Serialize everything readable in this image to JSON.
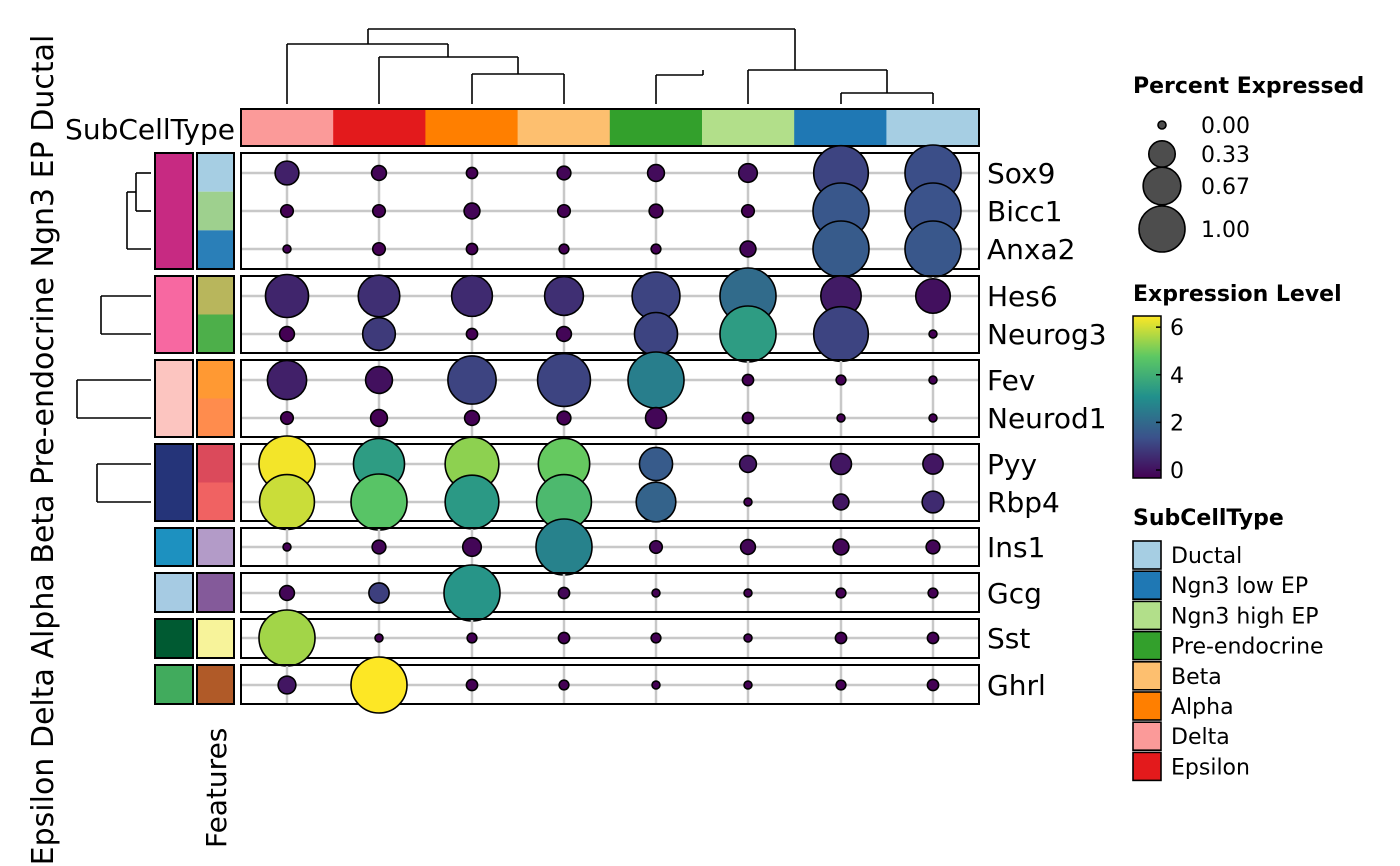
{
  "chart_data": {
    "type": "dotplot",
    "columns": [
      "Delta",
      "Epsilon",
      "Alpha",
      "Beta",
      "Pre-endocrine",
      "Ngn3 high EP",
      "Ngn3 low EP",
      "Ductal"
    ],
    "column_colors": [
      "#FB9A99",
      "#E31A1C",
      "#FF7F00",
      "#FDBF6F",
      "#33A02C",
      "#B2DF8A",
      "#1F78B4",
      "#A6CEE3"
    ],
    "column_annotation_label": "SubCellType",
    "features_label": "Features",
    "groups": [
      {
        "name": "Ductal",
        "color": "#C72A82",
        "features": [
          "Sox9",
          "Bicc1",
          "Anxa2"
        ],
        "feature_colors": [
          "#A6CEE3",
          "#9ED08E",
          "#2A7FB8"
        ]
      },
      {
        "name": "Ngn3 EP",
        "color": "#F768A1",
        "features": [
          "Hes6",
          "Neurog3"
        ],
        "feature_colors": [
          "#B8B65C",
          "#4DAF4A"
        ]
      },
      {
        "name": "Pre-endocrine",
        "color": "#FCC5C0",
        "features": [
          "Fev",
          "Neurod1"
        ],
        "feature_colors": [
          "#FF9933",
          "#FF8C4D"
        ]
      },
      {
        "name": "Beta",
        "color": "#253479",
        "features": [
          "Pyy",
          "Rbp4"
        ],
        "feature_colors": [
          "#DB4A5B",
          "#F06262"
        ]
      },
      {
        "name": "Alpha",
        "color": "#1D91C0",
        "features": [
          "Ins1"
        ],
        "feature_colors": [
          "#B39BC8"
        ]
      },
      {
        "name": "Delta",
        "color": "#A6CBE3",
        "features": [
          "Gcg"
        ],
        "feature_colors": [
          "#845A9A"
        ]
      },
      {
        "name": "Epsilon",
        "color": "#005A32",
        "features": [
          "Sst"
        ],
        "feature_colors": [
          "#F7F39A"
        ]
      },
      {
        "name": "",
        "color": "#41AB5D",
        "features": [
          "Ghrl"
        ],
        "feature_colors": [
          "#B05A28"
        ]
      }
    ],
    "group_side_label": "Epsilon Delta Alpha Beta Pre-endocrine Ngn3 EP Ductal",
    "percent": {
      "Sox9": [
        0.18,
        0.07,
        0.04,
        0.06,
        0.09,
        0.11,
        0.95,
        1.0
      ],
      "Bicc1": [
        0.05,
        0.05,
        0.08,
        0.05,
        0.06,
        0.05,
        1.0,
        1.0
      ],
      "Anxa2": [
        0.02,
        0.05,
        0.04,
        0.03,
        0.03,
        0.08,
        1.0,
        1.0
      ],
      "Hes6": [
        0.59,
        0.55,
        0.53,
        0.48,
        0.73,
        1.0,
        0.52,
        0.38
      ],
      "Neurog3": [
        0.07,
        0.34,
        0.04,
        0.07,
        0.59,
        1.0,
        0.95,
        0.02
      ],
      "Fev": [
        0.49,
        0.23,
        0.74,
        0.89,
        1.0,
        0.04,
        0.03,
        0.02
      ],
      "Neurod1": [
        0.05,
        0.09,
        0.07,
        0.06,
        0.14,
        0.04,
        0.02,
        0.02
      ],
      "Pyy": [
        1.0,
        0.83,
        0.92,
        0.84,
        0.35,
        0.09,
        0.14,
        0.13
      ],
      "Rbp4": [
        0.96,
        1.0,
        0.92,
        0.96,
        0.5,
        0.02,
        0.08,
        0.15
      ],
      "Ins1": [
        0.02,
        0.06,
        0.11,
        1.0,
        0.05,
        0.07,
        0.08,
        0.06
      ],
      "Gcg": [
        0.07,
        0.13,
        1.0,
        0.04,
        0.02,
        0.02,
        0.03,
        0.03
      ],
      "Sst": [
        1.0,
        0.02,
        0.03,
        0.04,
        0.03,
        0.02,
        0.04,
        0.04
      ],
      "Ghrl": [
        0.1,
        1.0,
        0.04,
        0.03,
        0.02,
        0.02,
        0.03,
        0.04
      ]
    },
    "expression": {
      "Sox9": [
        0.6,
        0.1,
        0.0,
        0.1,
        0.2,
        0.3,
        1.3,
        1.5
      ],
      "Bicc1": [
        0.0,
        0.0,
        0.1,
        0.0,
        0.0,
        0.0,
        1.7,
        1.6
      ],
      "Anxa2": [
        0.0,
        0.0,
        0.0,
        0.0,
        0.0,
        0.1,
        1.8,
        1.7
      ],
      "Hes6": [
        0.7,
        0.9,
        0.8,
        0.9,
        1.3,
        2.2,
        0.5,
        0.3
      ],
      "Neurog3": [
        0.0,
        1.1,
        0.0,
        0.1,
        1.3,
        3.5,
        1.3,
        0.0
      ],
      "Fev": [
        0.6,
        0.3,
        1.3,
        1.3,
        2.7,
        0.0,
        0.0,
        0.0
      ],
      "Neurod1": [
        0.0,
        0.0,
        0.0,
        0.0,
        0.1,
        0.0,
        0.0,
        0.0
      ],
      "Pyy": [
        6.2,
        3.5,
        5.2,
        4.8,
        1.8,
        0.4,
        0.4,
        0.4
      ],
      "Rbp4": [
        5.8,
        4.6,
        3.4,
        4.3,
        2.0,
        0.0,
        0.4,
        0.8
      ],
      "Ins1": [
        0.0,
        0.1,
        0.1,
        2.8,
        0.1,
        0.1,
        0.1,
        0.1
      ],
      "Gcg": [
        0.1,
        1.2,
        3.3,
        0.1,
        0.0,
        0.0,
        0.0,
        0.0
      ],
      "Sst": [
        5.4,
        0.0,
        0.0,
        0.0,
        0.0,
        0.0,
        0.0,
        0.0
      ],
      "Ghrl": [
        0.4,
        6.3,
        0.0,
        0.0,
        0.0,
        0.0,
        0.0,
        0.0
      ]
    },
    "legend_percent": {
      "title": "Percent Expressed",
      "levels": [
        0.0,
        0.33,
        0.67,
        1.0
      ],
      "labels": [
        "0.00",
        "0.33",
        "0.67",
        "1.00"
      ]
    },
    "legend_expression": {
      "title": "Expression Level",
      "range": [
        0,
        6.3
      ],
      "ticks": [
        0,
        2,
        4,
        6
      ],
      "tick_labels": [
        "0",
        "2",
        "4",
        "6"
      ],
      "palette": [
        "#440154",
        "#3B528B",
        "#21908C",
        "#5DC863",
        "#FDE725"
      ]
    },
    "legend_subcelltype": {
      "title": "SubCellType",
      "items": [
        {
          "label": "Ductal",
          "color": "#A6CEE3"
        },
        {
          "label": "Ngn3 low EP",
          "color": "#1F78B4"
        },
        {
          "label": "Ngn3 high EP",
          "color": "#B2DF8A"
        },
        {
          "label": "Pre-endocrine",
          "color": "#33A02C"
        },
        {
          "label": "Beta",
          "color": "#FDBF6F"
        },
        {
          "label": "Alpha",
          "color": "#FF7F00"
        },
        {
          "label": "Delta",
          "color": "#FB9A99"
        },
        {
          "label": "Epsilon",
          "color": "#E31A1C"
        }
      ]
    }
  }
}
